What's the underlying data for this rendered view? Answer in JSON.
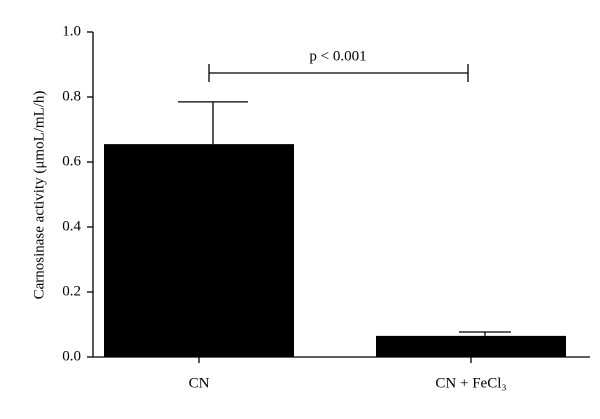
{
  "chart_data": {
    "type": "bar",
    "y_label": "Carnosinase activity (μmoL/mL/h)",
    "annotation": "p < 0.001",
    "categories": [
      "CN",
      "CN + FeCl₃"
    ],
    "values": [
      0.655,
      0.065
    ],
    "errors": [
      0.13,
      0.012
    ],
    "color": "#000000",
    "ylim": [
      0,
      1.0
    ],
    "yticks": [
      {
        "value": 0,
        "label": "0.0"
      },
      0.2,
      0.4,
      0.6,
      0.8,
      {
        "value": 1.0,
        "label": "1.0"
      }
    ]
  }
}
